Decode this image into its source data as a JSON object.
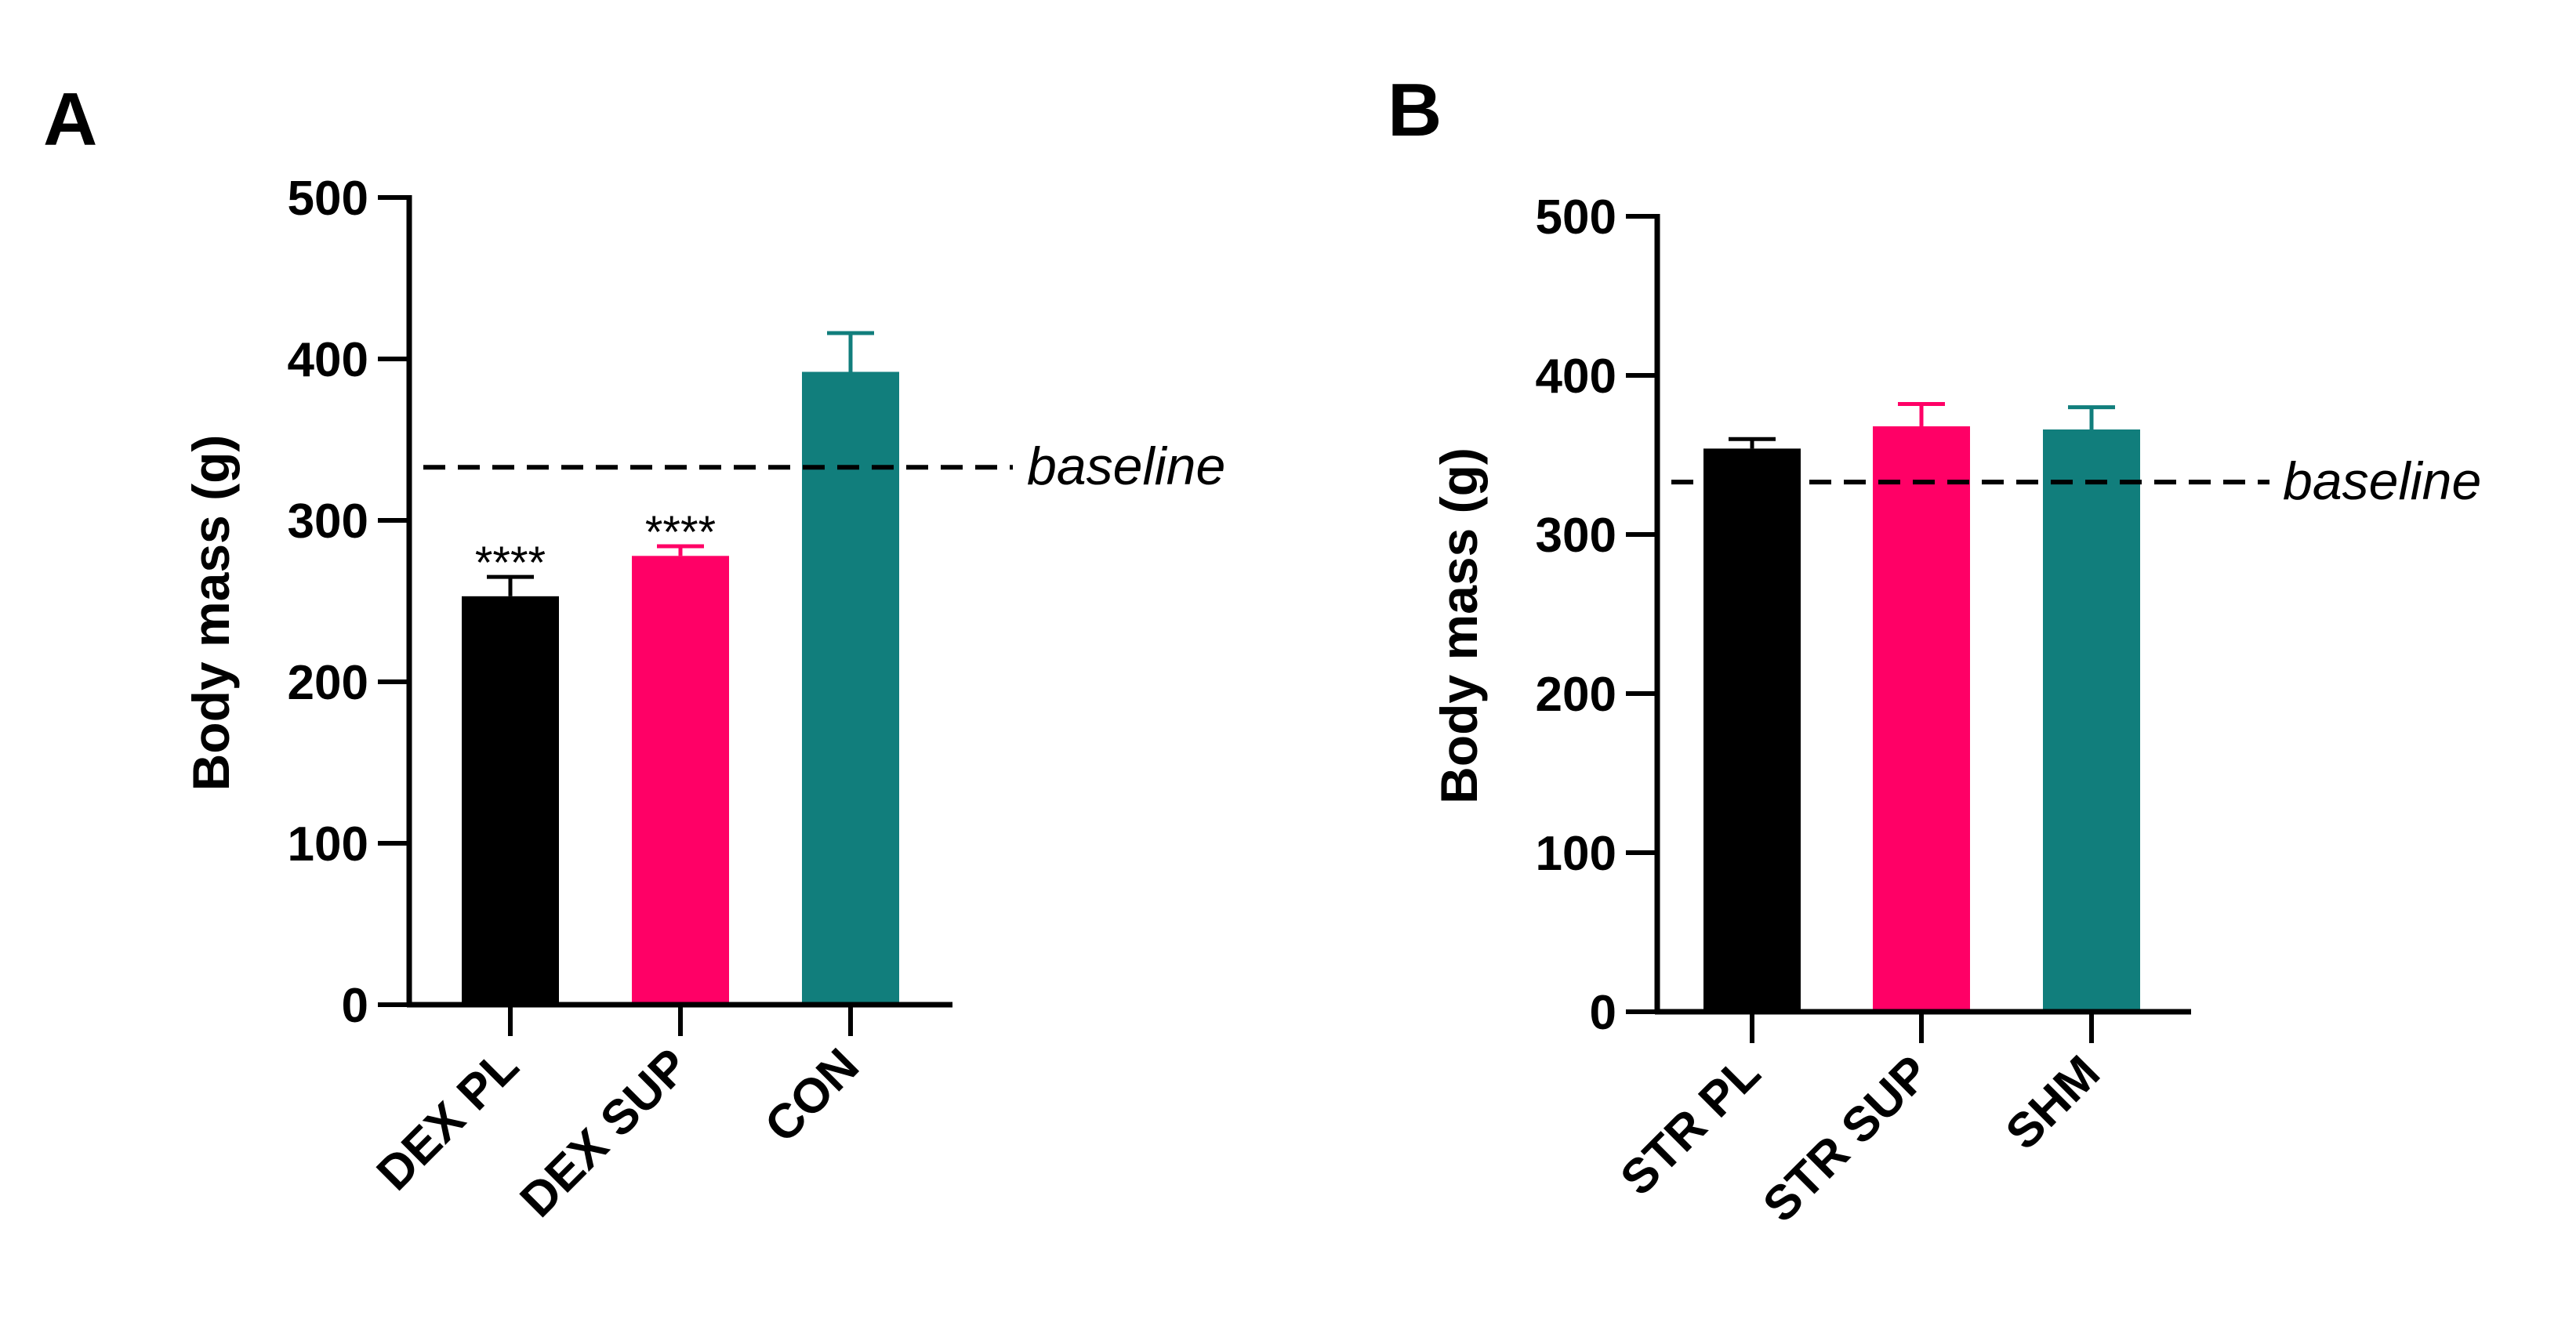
{
  "chart_data": [
    {
      "panel": "A",
      "type": "bar",
      "ylabel": "Body mass (g)",
      "xlabel": "",
      "ylim": [
        0,
        500
      ],
      "yticks": [
        "0",
        "100",
        "200",
        "300",
        "400",
        "500"
      ],
      "categories": [
        "DEX PL",
        "DEX SUP",
        "CON"
      ],
      "values": [
        253,
        278,
        392
      ],
      "errors": [
        12,
        6,
        24
      ],
      "colors": [
        "#000000",
        "#ff0066",
        "#117e7c"
      ],
      "significance": [
        "****",
        "****",
        ""
      ],
      "reference_line": {
        "value": 330,
        "label": "baseline",
        "style": "dashed"
      }
    },
    {
      "panel": "B",
      "type": "bar",
      "ylabel": "Body mass (g)",
      "xlabel": "",
      "ylim": [
        0,
        500
      ],
      "yticks": [
        "0",
        "100",
        "200",
        "300",
        "400",
        "500"
      ],
      "categories": [
        "STR PL",
        "STR SUP",
        "SHM"
      ],
      "values": [
        354,
        368,
        366
      ],
      "errors": [
        6,
        14,
        14
      ],
      "colors": [
        "#000000",
        "#ff0066",
        "#117e7c"
      ],
      "significance": [
        "",
        "",
        ""
      ],
      "reference_line": {
        "value": 330,
        "label": "baseline",
        "style": "dashed"
      }
    }
  ]
}
